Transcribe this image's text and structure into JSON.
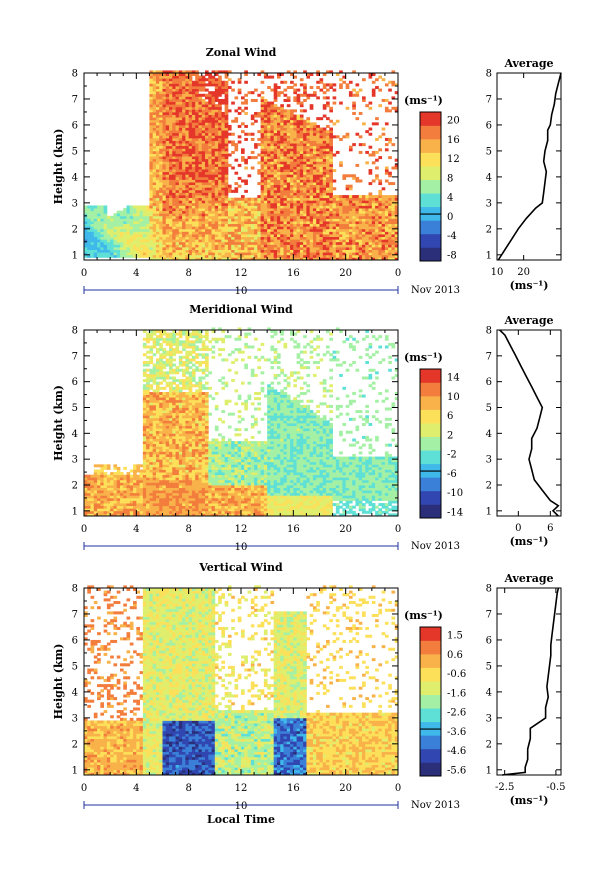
{
  "chart_data": [
    {
      "type": "heatmap",
      "title": "Zonal Wind",
      "xlabel": "",
      "ylabel": "Height (km)",
      "xlim": [
        0,
        24
      ],
      "ylim": [
        0.8,
        8
      ],
      "x_ticks": [
        "0",
        "4",
        "8",
        "12",
        "16",
        "20",
        "0"
      ],
      "y_ticks": [
        "1",
        "2",
        "3",
        "4",
        "5",
        "6",
        "7",
        "8"
      ],
      "date_day": "10",
      "date_label": "Nov 2013",
      "colorbar": {
        "unit": "(ms⁻¹)",
        "ticks": [
          "20",
          "16",
          "12",
          "8",
          "4",
          "0",
          "-4",
          "-8"
        ],
        "range": [
          -10,
          22
        ]
      },
      "average": {
        "title": "Average",
        "xlabel": "(ms⁻¹)",
        "x_ticks": [
          "10",
          "20"
        ],
        "xlim": [
          10,
          34
        ],
        "height_km": [
          0.8,
          1.2,
          1.6,
          2.0,
          2.4,
          2.8,
          3.0,
          3.4,
          3.8,
          4.2,
          4.6,
          5.0,
          5.4,
          5.8,
          6.0,
          6.4,
          6.8,
          7.2,
          7.6,
          8.0
        ],
        "values": [
          10.5,
          13,
          15.5,
          18,
          21,
          24.5,
          27,
          27.5,
          28,
          28.5,
          27.5,
          28,
          29,
          29,
          30,
          30.5,
          31.5,
          32,
          33,
          34
        ]
      }
    },
    {
      "type": "heatmap",
      "title": "Meridional Wind",
      "xlabel": "",
      "ylabel": "Height (km)",
      "xlim": [
        0,
        24
      ],
      "ylim": [
        0.8,
        8
      ],
      "x_ticks": [
        "0",
        "4",
        "8",
        "12",
        "16",
        "20",
        "0"
      ],
      "y_ticks": [
        "1",
        "2",
        "3",
        "4",
        "5",
        "6",
        "7",
        "8"
      ],
      "date_day": "10",
      "date_label": "Nov 2013",
      "colorbar": {
        "unit": "(ms⁻¹)",
        "ticks": [
          "14",
          "10",
          "6",
          "2",
          "-2",
          "-6",
          "-10",
          "-14"
        ],
        "range": [
          -16,
          16
        ]
      },
      "average": {
        "title": "Average",
        "xlabel": "(ms⁻¹)",
        "x_ticks": [
          "0",
          "6"
        ],
        "xlim": [
          -4,
          8
        ],
        "height_km": [
          0.8,
          1.0,
          1.2,
          1.4,
          1.8,
          2.2,
          2.6,
          3.0,
          3.4,
          3.8,
          4.2,
          4.6,
          5.0,
          5.4,
          5.8,
          6.2,
          6.6,
          7.0,
          7.4,
          7.8,
          8.0
        ],
        "values": [
          7.5,
          6.5,
          7.5,
          6.0,
          4.5,
          3.0,
          2.5,
          2.0,
          2.5,
          2.5,
          3.5,
          4.0,
          4.5,
          3.5,
          2.5,
          1.5,
          0.5,
          -0.5,
          -1.5,
          -2.5,
          -3.5
        ]
      }
    },
    {
      "type": "heatmap",
      "title": "Vertical Wind",
      "xlabel": "Local Time",
      "ylabel": "Height (km)",
      "xlim": [
        0,
        24
      ],
      "ylim": [
        0.8,
        8
      ],
      "x_ticks": [
        "0",
        "4",
        "8",
        "12",
        "16",
        "20",
        "0"
      ],
      "y_ticks": [
        "1",
        "2",
        "3",
        "4",
        "5",
        "6",
        "7",
        "8"
      ],
      "date_day": "10",
      "date_label": "Nov 2013",
      "colorbar": {
        "unit": "(ms⁻¹)",
        "ticks": [
          "1.5",
          "0.6",
          "-0.6",
          "-1.6",
          "-2.6",
          "-3.6",
          "-4.6",
          "-5.6"
        ],
        "range": [
          -6.2,
          2.2
        ]
      },
      "average": {
        "title": "Average",
        "xlabel": "(ms⁻¹)",
        "x_ticks": [
          "-2.5",
          "-0.5"
        ],
        "xlim": [
          -2.8,
          -0.3
        ],
        "height_km": [
          0.8,
          0.9,
          1.1,
          1.4,
          1.8,
          2.2,
          2.6,
          2.8,
          3.0,
          3.4,
          3.8,
          4.2,
          4.6,
          5.0,
          5.4,
          5.8,
          6.2,
          6.6,
          7.0,
          7.4,
          7.8,
          8.0
        ],
        "values": [
          -2.6,
          -1.7,
          -1.7,
          -1.6,
          -1.6,
          -1.5,
          -1.5,
          -1.2,
          -0.9,
          -0.9,
          -0.8,
          -0.85,
          -0.8,
          -0.75,
          -0.7,
          -0.7,
          -0.65,
          -0.6,
          -0.55,
          -0.5,
          -0.45,
          -0.4
        ]
      }
    }
  ],
  "colors": {
    "scale": [
      "#2b2f7a",
      "#3146b0",
      "#3a7fd8",
      "#3fb8ea",
      "#5fe0d6",
      "#a4f0a4",
      "#dfee6c",
      "#fce05a",
      "#f9b24a",
      "#f27d3c",
      "#e4372a"
    ]
  }
}
